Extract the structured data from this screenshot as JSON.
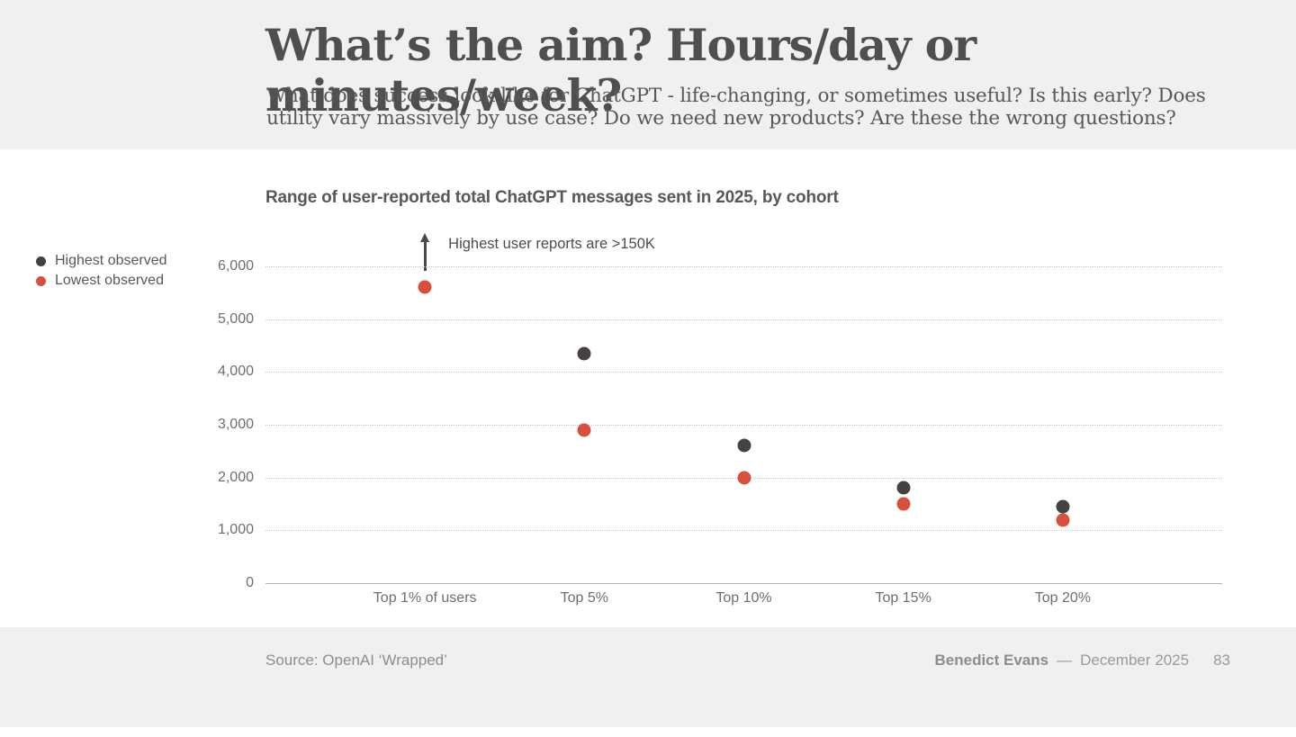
{
  "slide": {
    "title": "What’s the aim? Hours/day or minutes/week?",
    "subtitle": "What does success look like for ChatGPT - life-changing, or sometimes useful? Is this early? Does utility vary massively by use case? Do we need new products? Are these the wrong questions?",
    "footer": {
      "source": "Source: OpenAI ‘Wrapped’",
      "author": "Benedict Evans",
      "separator": "—",
      "date": "December 2025",
      "page_number": "83"
    }
  },
  "chart_data": {
    "type": "scatter",
    "title": "Range of user-reported total ChatGPT messages sent in 2025, by cohort",
    "categories": [
      "Top 1% of users",
      "Top 5%",
      "Top 10%",
      "Top 15%",
      "Top 20%"
    ],
    "series": [
      {
        "name": "Highest observed",
        "color": "#454241",
        "values": [
          null,
          4350,
          2600,
          1800,
          1450
        ]
      },
      {
        "name": "Lowest observed",
        "color": "#d6503c",
        "values": [
          5600,
          2900,
          2000,
          1500,
          1200
        ]
      }
    ],
    "annotation": {
      "text": "Highest user reports are >150K",
      "category_index": 0,
      "off_chart": true
    },
    "ylim": [
      0,
      6000
    ],
    "yticks": [
      0,
      1000,
      2000,
      3000,
      4000,
      5000,
      6000
    ],
    "ytick_labels": [
      "0",
      "1,000",
      "2,000",
      "3,000",
      "4,000",
      "5,000",
      "6,000"
    ],
    "legend_position": "left",
    "grid": "horizontal-dotted",
    "colors": {
      "header_bg": "#f0f0f0",
      "footer_bg": "#f0f0f0",
      "plot_bg": "#ffffff"
    }
  }
}
